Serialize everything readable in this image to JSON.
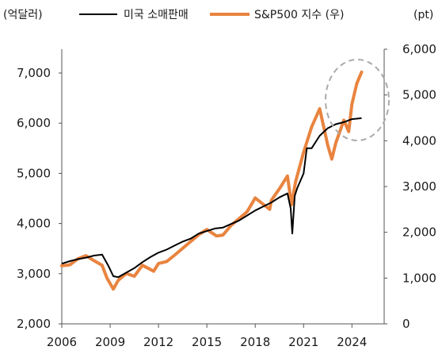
{
  "chart_data": {
    "type": "line",
    "left_unit": "(억달러)",
    "right_unit": "(pt)",
    "x_ticks": [
      "2006",
      "2009",
      "2012",
      "2015",
      "2018",
      "2021",
      "2024"
    ],
    "xlim": [
      2006,
      2026
    ],
    "y_left": {
      "ylim": [
        2000,
        7500
      ],
      "ticks": [
        "2,000",
        "3,000",
        "4,000",
        "5,000",
        "6,000",
        "7,000"
      ],
      "tick_values": [
        2000,
        3000,
        4000,
        5000,
        6000,
        7000
      ]
    },
    "y_right": {
      "ylim": [
        0,
        6000
      ],
      "ticks": [
        "0",
        "1,000",
        "2,000",
        "3,000",
        "4,000",
        "5,000",
        "6,000"
      ],
      "tick_values": [
        0,
        1000,
        2000,
        3000,
        4000,
        5000,
        6000
      ]
    },
    "grid": false,
    "legend_position": "top",
    "annotation": "dashed-circle",
    "colors": {
      "retail": "#000000",
      "sp500": "#e9843f",
      "circle": "#aaaaaa"
    },
    "series": [
      {
        "name": "미국 소매판매",
        "axis": "left",
        "points": [
          [
            2006.0,
            3200
          ],
          [
            2006.5,
            3250
          ],
          [
            2007.0,
            3290
          ],
          [
            2007.5,
            3320
          ],
          [
            2008.0,
            3360
          ],
          [
            2008.5,
            3380
          ],
          [
            2008.9,
            3150
          ],
          [
            2009.2,
            2950
          ],
          [
            2009.5,
            2930
          ],
          [
            2010.0,
            3020
          ],
          [
            2010.5,
            3110
          ],
          [
            2011.0,
            3230
          ],
          [
            2011.5,
            3330
          ],
          [
            2012.0,
            3420
          ],
          [
            2012.5,
            3480
          ],
          [
            2013.0,
            3560
          ],
          [
            2013.5,
            3640
          ],
          [
            2014.0,
            3700
          ],
          [
            2014.5,
            3800
          ],
          [
            2015.0,
            3850
          ],
          [
            2015.5,
            3900
          ],
          [
            2016.0,
            3920
          ],
          [
            2016.5,
            3990
          ],
          [
            2017.0,
            4060
          ],
          [
            2017.5,
            4160
          ],
          [
            2018.0,
            4260
          ],
          [
            2018.5,
            4340
          ],
          [
            2019.0,
            4420
          ],
          [
            2019.5,
            4520
          ],
          [
            2020.0,
            4600
          ],
          [
            2020.2,
            4300
          ],
          [
            2020.3,
            3800
          ],
          [
            2020.45,
            4550
          ],
          [
            2020.6,
            4700
          ],
          [
            2021.0,
            5000
          ],
          [
            2021.2,
            5500
          ],
          [
            2021.5,
            5500
          ],
          [
            2022.0,
            5750
          ],
          [
            2022.5,
            5900
          ],
          [
            2023.0,
            5980
          ],
          [
            2023.5,
            6020
          ],
          [
            2024.0,
            6080
          ],
          [
            2024.6,
            6100
          ]
        ]
      },
      {
        "name": "S&P500 지수 (우)",
        "axis": "right",
        "points": [
          [
            2006.0,
            1270
          ],
          [
            2006.5,
            1290
          ],
          [
            2007.0,
            1420
          ],
          [
            2007.5,
            1490
          ],
          [
            2008.0,
            1380
          ],
          [
            2008.5,
            1280
          ],
          [
            2008.8,
            1000
          ],
          [
            2009.2,
            760
          ],
          [
            2009.5,
            950
          ],
          [
            2010.0,
            1100
          ],
          [
            2010.5,
            1040
          ],
          [
            2011.0,
            1280
          ],
          [
            2011.7,
            1150
          ],
          [
            2012.0,
            1320
          ],
          [
            2012.5,
            1360
          ],
          [
            2013.0,
            1500
          ],
          [
            2013.5,
            1650
          ],
          [
            2014.0,
            1800
          ],
          [
            2014.5,
            1950
          ],
          [
            2015.0,
            2060
          ],
          [
            2015.6,
            1920
          ],
          [
            2016.0,
            1940
          ],
          [
            2016.5,
            2150
          ],
          [
            2017.0,
            2300
          ],
          [
            2017.5,
            2450
          ],
          [
            2018.0,
            2750
          ],
          [
            2018.9,
            2500
          ],
          [
            2019.0,
            2700
          ],
          [
            2019.5,
            2950
          ],
          [
            2020.0,
            3230
          ],
          [
            2020.25,
            2600
          ],
          [
            2020.5,
            3100
          ],
          [
            2021.0,
            3750
          ],
          [
            2021.5,
            4300
          ],
          [
            2022.0,
            4700
          ],
          [
            2022.5,
            3900
          ],
          [
            2022.75,
            3600
          ],
          [
            2023.0,
            3950
          ],
          [
            2023.5,
            4450
          ],
          [
            2023.8,
            4200
          ],
          [
            2024.0,
            4800
          ],
          [
            2024.3,
            5250
          ],
          [
            2024.6,
            5500
          ]
        ]
      }
    ]
  }
}
